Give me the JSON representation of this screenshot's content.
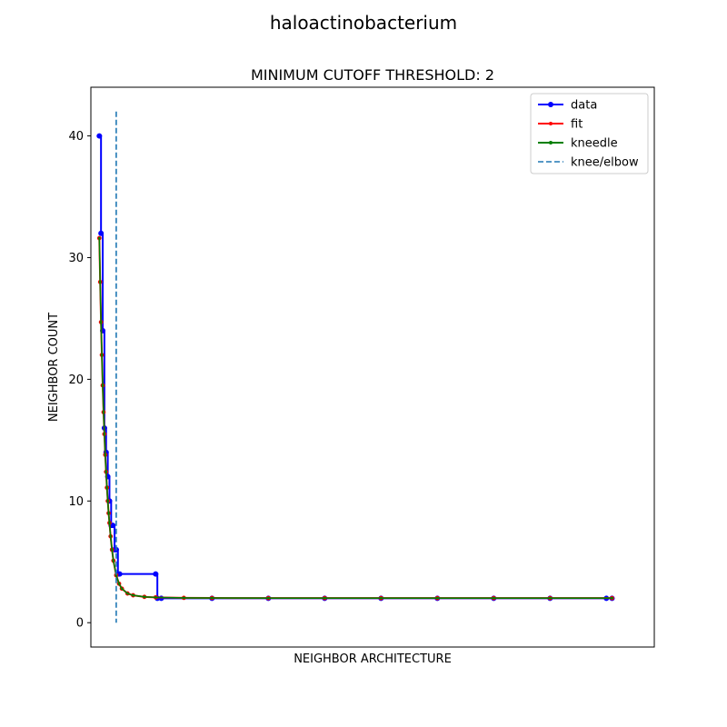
{
  "figure": {
    "suptitle": "haloactinobacterium"
  },
  "chart_data": {
    "type": "line",
    "title": "MINIMUM CUTOFF THRESHOLD: 2",
    "xlabel": "NEIGHBOR ARCHITECTURE",
    "ylabel": "NEIGHBOR COUNT",
    "xlim": [
      -1.5,
      98.5
    ],
    "ylim": [
      -2,
      44
    ],
    "x_ticks_visible": false,
    "yticks": [
      0,
      10,
      20,
      30,
      40
    ],
    "ytick_labels": [
      "0",
      "10",
      "20",
      "30",
      "40"
    ],
    "grid": false,
    "legend": {
      "placement": "top-right",
      "entries": [
        "data",
        "fit",
        "kneedle",
        "knee/elbow"
      ]
    },
    "knee_x": 3,
    "knee_line_range": [
      0,
      42
    ],
    "series": [
      {
        "name": "data",
        "color": "#0000ff",
        "marker": "circle",
        "x": [
          0,
          0.3,
          0.6,
          0.9,
          1.2,
          1.5,
          1.8,
          2.1,
          2.4,
          2.7,
          3,
          3.3,
          3.6,
          10,
          10.3,
          11,
          20,
          30,
          40,
          50,
          60,
          70,
          80,
          90,
          91
        ],
        "values": [
          40,
          32,
          24,
          16,
          14,
          12,
          10,
          8,
          8,
          6,
          6,
          4,
          4,
          4,
          2,
          2,
          2,
          2,
          2,
          2,
          2,
          2,
          2,
          2,
          2
        ]
      },
      {
        "name": "fit",
        "color": "#ff0000",
        "marker": "dot",
        "x": [
          0,
          0.15,
          0.3,
          0.45,
          0.6,
          0.75,
          0.9,
          1.05,
          1.2,
          1.35,
          1.5,
          1.65,
          1.8,
          2.0,
          2.25,
          2.5,
          3,
          3.5,
          4,
          5,
          6,
          8,
          10,
          15,
          20,
          30,
          40,
          50,
          60,
          70,
          80,
          91
        ],
        "values": [
          31.6,
          28,
          24.7,
          22,
          19.5,
          17.3,
          15.5,
          13.8,
          12.4,
          11.1,
          10,
          9,
          8.2,
          7.1,
          6.0,
          5.1,
          3.9,
          3.2,
          2.8,
          2.4,
          2.25,
          2.12,
          2.08,
          2.04,
          2.03,
          2.02,
          2.02,
          2.02,
          2.02,
          2.02,
          2.02,
          2.02
        ]
      },
      {
        "name": "kneedle",
        "color": "#008000",
        "marker": "dot",
        "x": [
          0,
          0.15,
          0.3,
          0.45,
          0.6,
          0.75,
          0.9,
          1.05,
          1.2,
          1.35,
          1.5,
          1.65,
          1.8,
          2.0,
          2.25,
          2.5,
          3,
          3.5,
          4,
          5,
          6,
          8,
          10,
          15,
          20,
          30,
          40,
          50,
          60,
          70,
          80,
          91
        ],
        "values": [
          31.6,
          28,
          24.7,
          22,
          19.5,
          17.3,
          15.5,
          13.8,
          12.4,
          11.1,
          10,
          9,
          8.2,
          7.1,
          6.0,
          5.1,
          3.9,
          3.2,
          2.8,
          2.4,
          2.25,
          2.12,
          2.08,
          2.04,
          2.03,
          2.02,
          2.02,
          2.02,
          2.02,
          2.02,
          2.02,
          2.02
        ]
      },
      {
        "name": "knee/elbow",
        "color": "#1f77b4",
        "marker": "none",
        "style": "dashed"
      }
    ]
  }
}
